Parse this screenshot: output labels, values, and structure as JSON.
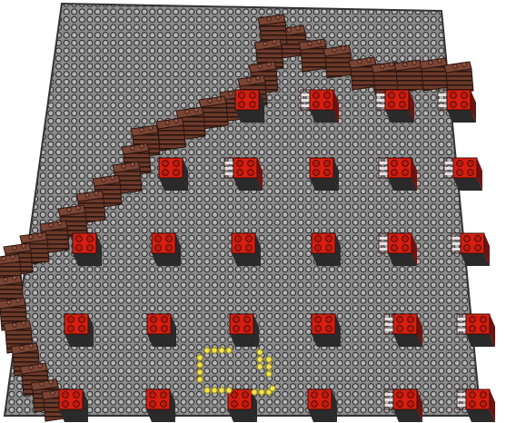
{
  "scene": {
    "description_type": "lego-build-scene",
    "baseplate": {
      "color": "#8c8c8c",
      "stud_color": "#b8b8b8",
      "stud_outline": "#2e2e2e",
      "edge_color": "#333333"
    },
    "brick_colors": {
      "red_top": "#d81e10",
      "red_side": "#6e1410",
      "dark_side": "#2a2a2a",
      "brown_top": "#6b3a2a",
      "brown_side": "#4a2419",
      "white_stripe": "#e8e0e0",
      "yellow": "#f2e34a",
      "yellow_edge": "#8a7d1c"
    },
    "grid": {
      "rows": 5,
      "cols": 6,
      "bricks_total": 30
    },
    "wall": {
      "material": "brown-stacked-bricks",
      "shape": "stepped-diagonal"
    },
    "marker": {
      "color": "yellow",
      "shape": "bracket-outline",
      "row": 5,
      "col": 3
    }
  }
}
